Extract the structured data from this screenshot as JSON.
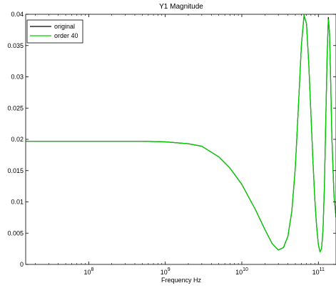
{
  "chart_data": {
    "type": "line",
    "title": "Y1 Magnitude",
    "xlabel": "Frequency Hz",
    "ylabel": "",
    "xscale": "log",
    "xlim": [
      15000000,
      170000000000
    ],
    "ylim": [
      0,
      0.04
    ],
    "grid": false,
    "legend_position": "top-left",
    "x_ticks": [
      {
        "base": "10",
        "exp": "8",
        "value": 100000000
      },
      {
        "base": "10",
        "exp": "9",
        "value": 1000000000
      },
      {
        "base": "10",
        "exp": "10",
        "value": 10000000000
      },
      {
        "base": "10",
        "exp": "11",
        "value": 100000000000
      }
    ],
    "y_ticks": [
      {
        "label": "0",
        "value": 0
      },
      {
        "label": "0.005",
        "value": 0.005
      },
      {
        "label": "0.01",
        "value": 0.01
      },
      {
        "label": "0.015",
        "value": 0.015
      },
      {
        "label": "0.02",
        "value": 0.02
      },
      {
        "label": "0.025",
        "value": 0.025
      },
      {
        "label": "0.03",
        "value": 0.03
      },
      {
        "label": "0.035",
        "value": 0.035
      },
      {
        "label": "0.04",
        "value": 0.04
      }
    ],
    "series": [
      {
        "name": "original",
        "color": "#000000",
        "x": [
          15000000,
          100000000,
          500000000,
          1000000000,
          2000000000,
          3000000000,
          5000000000,
          7000000000,
          10000000000,
          15000000000,
          20000000000,
          25000000000,
          30000000000,
          35000000000,
          40000000000,
          45000000000,
          50000000000,
          55000000000,
          60000000000,
          65000000000,
          70000000000,
          75000000000,
          80000000000,
          85000000000,
          90000000000,
          95000000000,
          100000000000,
          105000000000,
          110000000000,
          115000000000,
          120000000000,
          125000000000,
          130000000000,
          135000000000,
          140000000000,
          145000000000,
          150000000000,
          160000000000,
          170000000000
        ],
        "y": [
          0.0197,
          0.0197,
          0.0197,
          0.0196,
          0.0193,
          0.0189,
          0.0172,
          0.0154,
          0.0128,
          0.0088,
          0.0056,
          0.0033,
          0.0023,
          0.0027,
          0.0045,
          0.0085,
          0.0155,
          0.0255,
          0.035,
          0.0398,
          0.0385,
          0.032,
          0.024,
          0.0165,
          0.0103,
          0.006,
          0.0032,
          0.002,
          0.0025,
          0.0055,
          0.0125,
          0.023,
          0.033,
          0.0395,
          0.037,
          0.029,
          0.0205,
          0.011,
          0.0075
        ]
      },
      {
        "name": "order 40",
        "color": "#00cc00",
        "x": [
          15000000,
          100000000,
          500000000,
          1000000000,
          2000000000,
          3000000000,
          5000000000,
          7000000000,
          10000000000,
          15000000000,
          20000000000,
          25000000000,
          30000000000,
          35000000000,
          40000000000,
          45000000000,
          50000000000,
          55000000000,
          60000000000,
          65000000000,
          70000000000,
          75000000000,
          80000000000,
          85000000000,
          90000000000,
          95000000000,
          100000000000,
          105000000000,
          110000000000,
          115000000000,
          120000000000,
          125000000000,
          130000000000,
          135000000000,
          140000000000,
          145000000000,
          150000000000,
          160000000000,
          170000000000
        ],
        "y": [
          0.0197,
          0.0197,
          0.0197,
          0.0196,
          0.0193,
          0.0189,
          0.0172,
          0.0154,
          0.0128,
          0.0088,
          0.0056,
          0.0033,
          0.0023,
          0.0027,
          0.0045,
          0.0085,
          0.0155,
          0.0255,
          0.035,
          0.0399,
          0.0385,
          0.032,
          0.024,
          0.0165,
          0.0103,
          0.006,
          0.0032,
          0.002,
          0.0025,
          0.0055,
          0.0125,
          0.023,
          0.033,
          0.0392,
          0.037,
          0.029,
          0.0205,
          0.011,
          0.0075
        ]
      }
    ]
  }
}
